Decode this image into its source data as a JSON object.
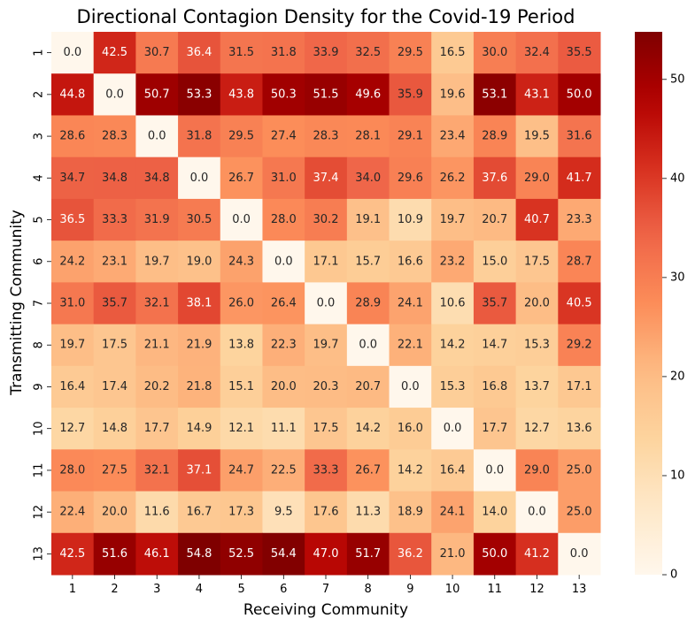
{
  "chart_data": {
    "type": "heatmap",
    "title": "Directional Contagion Density for the Covid-19 Period",
    "xlabel": "Receiving Community",
    "ylabel": "Transmitting Community",
    "x_categories": [
      "1",
      "2",
      "3",
      "4",
      "5",
      "6",
      "7",
      "8",
      "9",
      "10",
      "11",
      "12",
      "13"
    ],
    "y_categories": [
      "1",
      "2",
      "3",
      "4",
      "5",
      "6",
      "7",
      "8",
      "9",
      "10",
      "11",
      "12",
      "13"
    ],
    "values": [
      [
        0.0,
        42.5,
        30.7,
        36.4,
        31.5,
        31.8,
        33.9,
        32.5,
        29.5,
        16.5,
        30.0,
        32.4,
        35.5
      ],
      [
        44.8,
        0.0,
        50.7,
        53.3,
        43.8,
        50.3,
        51.5,
        49.6,
        35.9,
        19.6,
        53.1,
        43.1,
        50.0
      ],
      [
        28.6,
        28.3,
        0.0,
        31.8,
        29.5,
        27.4,
        28.3,
        28.1,
        29.1,
        23.4,
        28.9,
        19.5,
        31.6
      ],
      [
        34.7,
        34.8,
        34.8,
        0.0,
        26.7,
        31.0,
        37.4,
        34.0,
        29.6,
        26.2,
        37.6,
        29.0,
        41.7
      ],
      [
        36.5,
        33.3,
        31.9,
        30.5,
        0.0,
        28.0,
        30.2,
        19.1,
        10.9,
        19.7,
        20.7,
        40.7,
        23.3
      ],
      [
        24.2,
        23.1,
        19.7,
        19.0,
        24.3,
        0.0,
        17.1,
        15.7,
        16.6,
        23.2,
        15.0,
        17.5,
        28.7
      ],
      [
        31.0,
        35.7,
        32.1,
        38.1,
        26.0,
        26.4,
        0.0,
        28.9,
        24.1,
        10.6,
        35.7,
        20.0,
        40.5
      ],
      [
        19.7,
        17.5,
        21.1,
        21.9,
        13.8,
        22.3,
        19.7,
        0.0,
        22.1,
        14.2,
        14.7,
        15.3,
        29.2
      ],
      [
        16.4,
        17.4,
        20.2,
        21.8,
        15.1,
        20.0,
        20.3,
        20.7,
        0.0,
        15.3,
        16.8,
        13.7,
        17.1
      ],
      [
        12.7,
        14.8,
        17.7,
        14.9,
        12.1,
        11.1,
        17.5,
        14.2,
        16.0,
        0.0,
        17.7,
        12.7,
        13.6
      ],
      [
        28.0,
        27.5,
        32.1,
        37.1,
        24.7,
        22.5,
        33.3,
        26.7,
        14.2,
        16.4,
        0.0,
        29.0,
        25.0
      ],
      [
        22.4,
        20.0,
        11.6,
        16.7,
        17.3,
        9.5,
        17.6,
        11.3,
        18.9,
        24.1,
        14.0,
        0.0,
        25.0
      ],
      [
        42.5,
        51.6,
        46.1,
        54.8,
        52.5,
        54.4,
        47.0,
        51.7,
        36.2,
        21.0,
        50.0,
        41.2,
        0.0
      ]
    ],
    "value_format": "0.1f",
    "colormap": "OrRd",
    "vmin": 0,
    "vmax": 54.8,
    "colorbar_ticks": [
      0,
      10,
      20,
      30,
      40,
      50
    ]
  }
}
